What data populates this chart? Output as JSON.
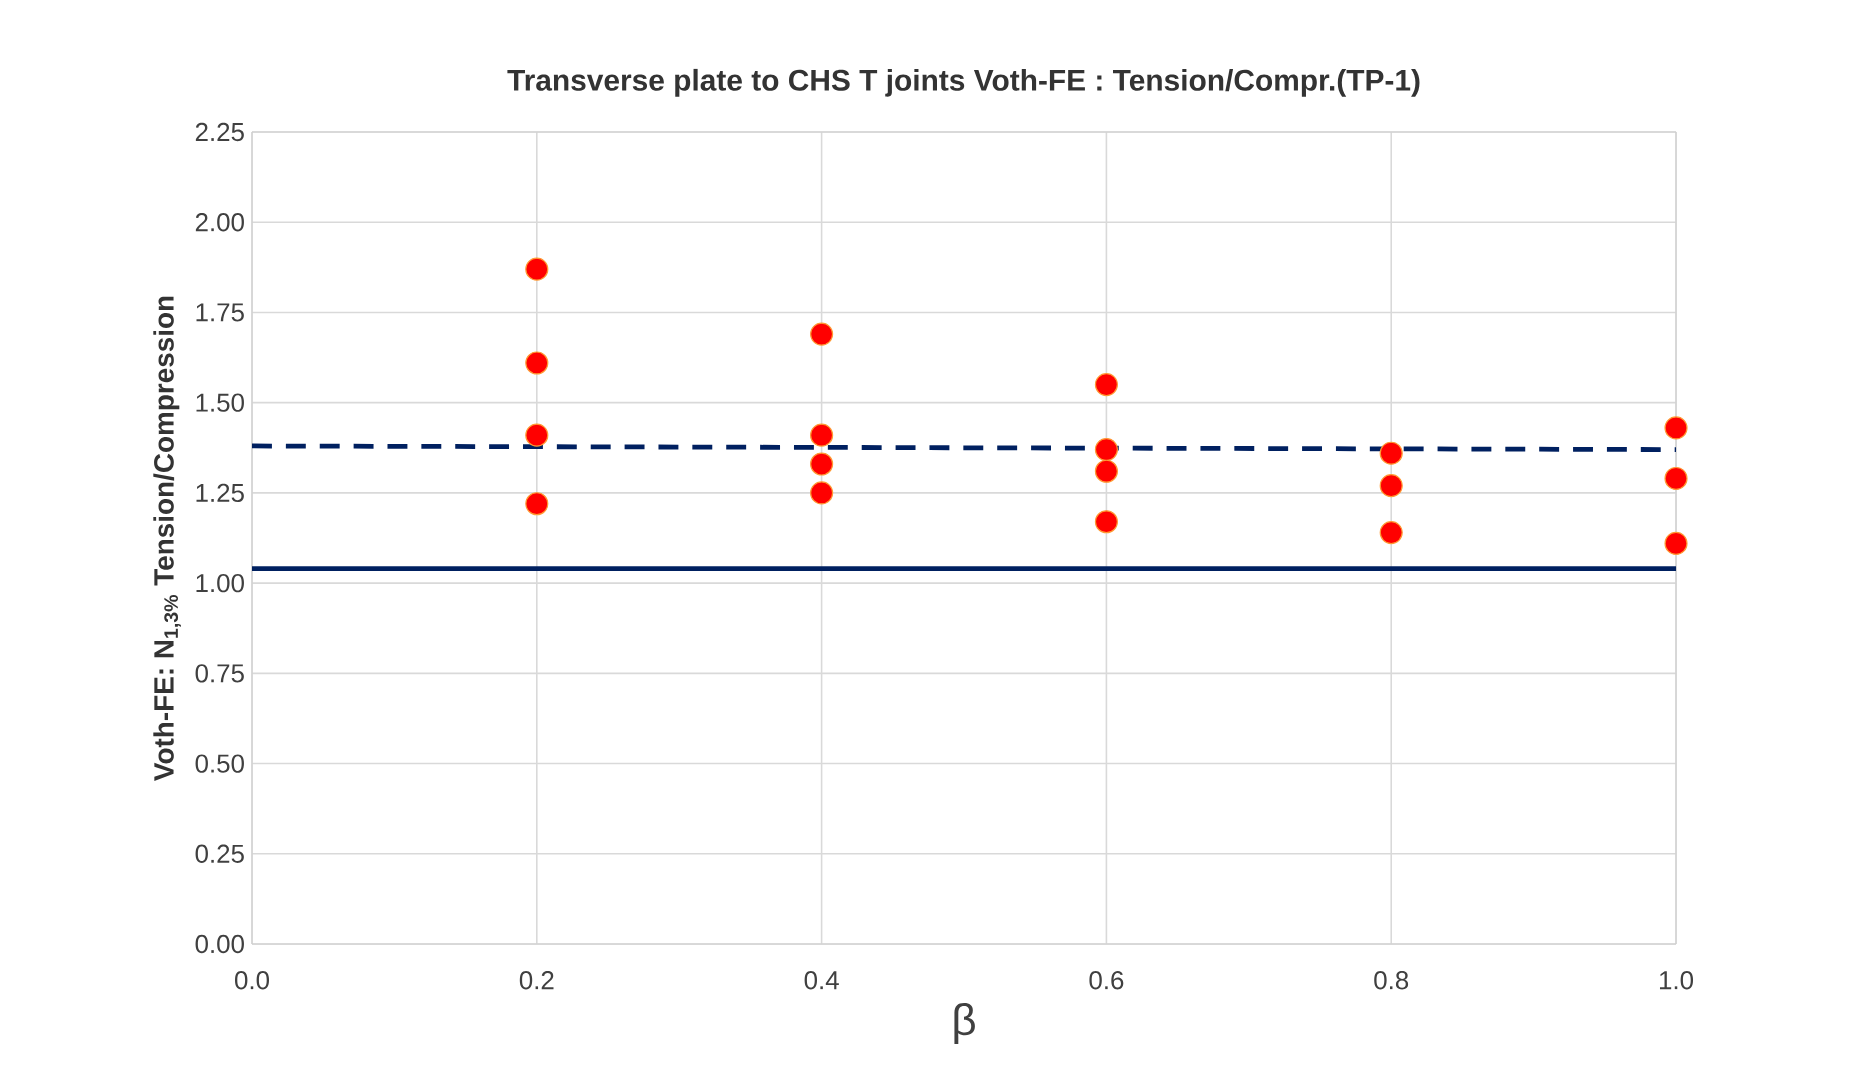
{
  "chart_data": {
    "type": "scatter",
    "title": "Transverse plate to CHS T joints Voth-FE : Tension/Compr.(TP-1)",
    "xlabel": "β",
    "ylabel": "Voth-FE: N$_{1,3%}$ Tension/Compression",
    "series": [
      {
        "color": "#ff0000",
        "marker": "circle",
        "x": [
          0.2,
          0.2,
          0.2,
          0.2,
          0.4,
          0.4,
          0.4,
          0.4,
          0.6,
          0.6,
          0.6,
          0.6,
          0.8,
          0.8,
          0.8,
          1.0,
          1.0,
          1.0
        ],
        "values": [
          1.87,
          1.61,
          1.41,
          1.22,
          1.69,
          1.41,
          1.33,
          1.25,
          1.55,
          1.37,
          1.31,
          1.17,
          1.36,
          1.27,
          1.14,
          1.43,
          1.29,
          1.11
        ]
      },
      {
        "type": "line",
        "color": "#002060",
        "line_style": "dashed",
        "marker": "none",
        "x": [
          0,
          1
        ],
        "values": [
          1.38,
          1.37
        ]
      }
    ],
    "ref_lines": [
      {
        "axis": "y",
        "value": 1.04,
        "color": "#002060",
        "line_style": "solid"
      }
    ],
    "xlim": [
      0,
      1
    ],
    "ylim": [
      0,
      2.25
    ],
    "xticks": [
      {
        "value": 0,
        "label": "0.0"
      },
      0.2,
      0.4,
      0.6,
      0.8,
      {
        "value": 1,
        "label": "1.0"
      }
    ],
    "yticks": [
      {
        "value": 0,
        "label": "0.00"
      },
      {
        "value": 0.25,
        "label": "0.25"
      },
      {
        "value": 0.5,
        "label": "0.50"
      },
      {
        "value": 0.75,
        "label": "0.75"
      },
      {
        "value": 1,
        "label": "1.00"
      },
      {
        "value": 1.25,
        "label": "1.25"
      },
      {
        "value": 1.5,
        "label": "1.50"
      },
      {
        "value": 1.75,
        "label": "1.75"
      },
      {
        "value": 2,
        "label": "2.00"
      },
      {
        "value": 2.25,
        "label": "2.25"
      }
    ],
    "grid": true
  }
}
